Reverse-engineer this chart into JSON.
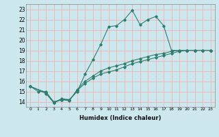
{
  "xlabel": "Humidex (Indice chaleur)",
  "ylabel": "",
  "bg_color": "#cce8ee",
  "grid_color": "#f0b0b0",
  "line_color": "#2e7d6e",
  "xlim": [
    -0.5,
    23.5
  ],
  "ylim": [
    13.5,
    23.5
  ],
  "xticks": [
    0,
    1,
    2,
    3,
    4,
    5,
    6,
    7,
    8,
    9,
    10,
    11,
    12,
    13,
    14,
    15,
    16,
    17,
    18,
    19,
    20,
    21,
    22,
    23
  ],
  "yticks": [
    14,
    15,
    16,
    17,
    18,
    19,
    20,
    21,
    22,
    23
  ],
  "curve1_x": [
    0,
    1,
    2,
    3,
    4,
    5,
    6,
    7,
    8,
    9,
    10,
    11,
    12,
    13,
    14,
    15,
    16,
    17,
    18,
    19,
    20,
    21,
    22,
    23
  ],
  "curve1_y": [
    15.5,
    15.0,
    15.0,
    13.9,
    14.3,
    14.2,
    15.0,
    16.7,
    18.1,
    19.6,
    21.3,
    21.4,
    22.0,
    22.9,
    21.5,
    22.0,
    22.3,
    21.4,
    19.0,
    19.0,
    19.0,
    19.0,
    19.0,
    19.0
  ],
  "curve2_x": [
    0,
    2,
    3,
    4,
    5,
    6,
    7,
    8,
    9,
    10,
    11,
    12,
    13,
    14,
    15,
    16,
    17,
    18,
    19,
    20,
    21,
    22,
    23
  ],
  "curve2_y": [
    15.5,
    14.9,
    14.0,
    14.2,
    14.1,
    15.2,
    16.0,
    16.5,
    17.0,
    17.3,
    17.5,
    17.7,
    18.0,
    18.2,
    18.4,
    18.6,
    18.7,
    18.9,
    19.0,
    19.0,
    19.0,
    19.0,
    19.0
  ],
  "curve3_x": [
    0,
    2,
    3,
    4,
    5,
    6,
    7,
    8,
    9,
    10,
    11,
    12,
    13,
    14,
    15,
    16,
    17,
    18,
    19,
    20,
    21,
    22,
    23
  ],
  "curve3_y": [
    15.5,
    14.8,
    13.9,
    14.2,
    14.2,
    15.1,
    15.8,
    16.3,
    16.7,
    16.9,
    17.1,
    17.4,
    17.7,
    17.9,
    18.1,
    18.3,
    18.5,
    18.7,
    18.9,
    19.0,
    19.0,
    19.0,
    19.0
  ]
}
